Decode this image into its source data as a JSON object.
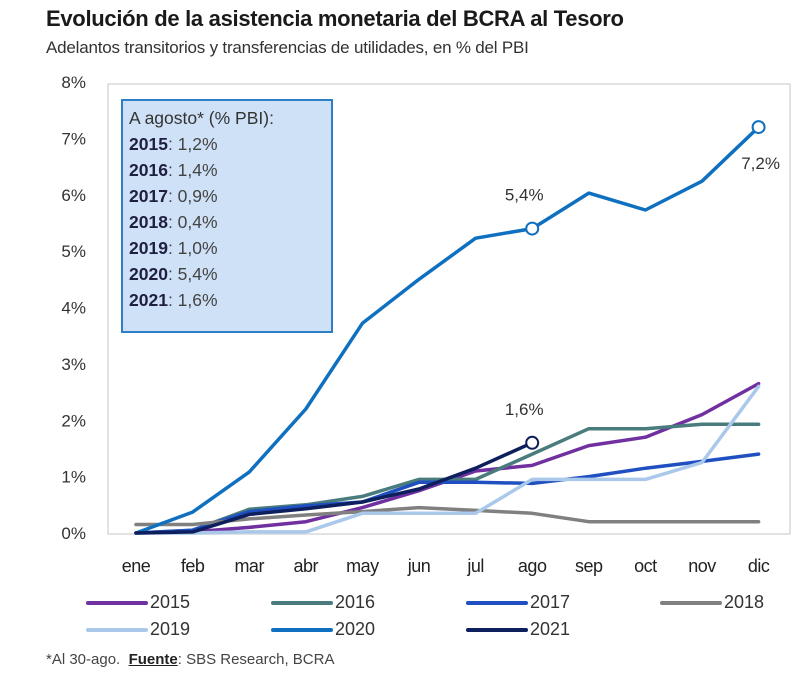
{
  "header": {
    "title": "Evolución de la asistencia monetaria del BCRA al Tesoro",
    "subtitle": "Adelantos transitorios y transferencias de utilidades, en % del PBI"
  },
  "infobox": {
    "heading": "A agosto* (% PBI):",
    "rows": [
      {
        "year": "2015",
        "value": ": 1,2%"
      },
      {
        "year": "2016",
        "value": ": 1,4%"
      },
      {
        "year": "2017",
        "value": ": 0,9%"
      },
      {
        "year": "2018",
        "value": ": 0,4%"
      },
      {
        "year": "2019",
        "value": ": 1,0%"
      },
      {
        "year": "2020",
        "value": ": 5,4%"
      },
      {
        "year": "2021",
        "value": ": 1,6%"
      }
    ]
  },
  "footnote": {
    "note": "*Al 30-ago.",
    "source_label": "Fuente",
    "source_text": ": SBS Research, BCRA"
  },
  "chart_data": {
    "type": "line",
    "title": "Evolución de la asistencia monetaria del BCRA al Tesoro",
    "subtitle": "Adelantos transitorios y transferencias de utilidades, en % del PBI",
    "xlabel": "",
    "ylabel": "",
    "categories": [
      "ene",
      "feb",
      "mar",
      "abr",
      "may",
      "jun",
      "jul",
      "ago",
      "sep",
      "oct",
      "nov",
      "dic"
    ],
    "ylim": [
      0,
      8
    ],
    "yticks": [
      0,
      1,
      2,
      3,
      4,
      5,
      6,
      7,
      8
    ],
    "ytick_labels": [
      "0%",
      "1%",
      "2%",
      "3%",
      "4%",
      "5%",
      "6%",
      "7%",
      "8%"
    ],
    "grid": false,
    "legend_position": "bottom",
    "series": [
      {
        "name": "2015",
        "color": "#7030a0",
        "values": [
          0,
          0.02,
          0.1,
          0.2,
          0.45,
          0.75,
          1.1,
          1.2,
          1.55,
          1.7,
          2.1,
          2.65
        ]
      },
      {
        "name": "2016",
        "color": "#4a7c7e",
        "values": [
          0,
          0.05,
          0.42,
          0.5,
          0.65,
          0.95,
          0.95,
          1.4,
          1.85,
          1.85,
          1.93,
          1.93
        ]
      },
      {
        "name": "2017",
        "color": "#1f4fc0",
        "values": [
          0,
          0.05,
          0.38,
          0.48,
          0.55,
          0.9,
          0.9,
          0.88,
          1.0,
          1.15,
          1.27,
          1.4
        ]
      },
      {
        "name": "2018",
        "color": "#808080",
        "values": [
          0.15,
          0.15,
          0.25,
          0.32,
          0.38,
          0.45,
          0.4,
          0.35,
          0.2,
          0.2,
          0.2,
          0.2
        ]
      },
      {
        "name": "2019",
        "color": "#a9c8ea",
        "values": [
          0,
          0,
          0.02,
          0.02,
          0.35,
          0.35,
          0.35,
          0.95,
          0.95,
          0.95,
          1.25,
          2.6
        ]
      },
      {
        "name": "2020",
        "color": "#1070c0",
        "values": [
          0,
          0.37,
          1.08,
          2.2,
          3.72,
          4.5,
          5.23,
          5.4,
          6.03,
          5.73,
          6.24,
          7.2
        ]
      },
      {
        "name": "2021",
        "color": "#0d1f5c",
        "values": [
          0,
          0.02,
          0.33,
          0.43,
          0.55,
          0.78,
          1.15,
          1.6
        ]
      }
    ],
    "annotations": [
      {
        "series": "2020",
        "category": "ago",
        "value": 5.4,
        "text": "5,4%",
        "position": "above"
      },
      {
        "series": "2020",
        "category": "dic",
        "value": 7.2,
        "text": "7,2%",
        "position": "below"
      },
      {
        "series": "2021",
        "category": "ago",
        "value": 1.6,
        "text": "1,6%",
        "position": "above"
      }
    ]
  }
}
